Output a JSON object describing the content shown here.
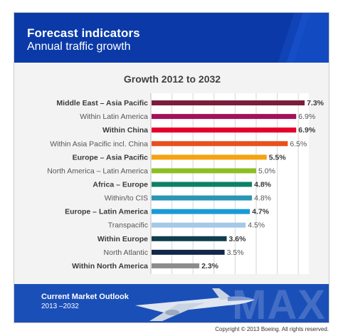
{
  "header": {
    "title": "Forecast indicators",
    "subtitle": "Annual traffic growth"
  },
  "chart_data": {
    "type": "bar",
    "orientation": "horizontal",
    "title": "Growth 2012 to 2032",
    "xlim": [
      0,
      7.5
    ],
    "grid": true,
    "categories": [
      "Middle East – Asia Pacific",
      "Within Latin America",
      "Within China",
      "Within Asia Pacific incl. China",
      "Europe – Asia Pacific",
      "North America – Latin America",
      "Africa – Europe",
      "Within/to CIS",
      "Europe – Latin America",
      "Transpacific",
      "Within Europe",
      "North Atlantic",
      "Within North America"
    ],
    "values": [
      7.3,
      6.9,
      6.9,
      6.5,
      5.5,
      5.0,
      4.8,
      4.8,
      4.7,
      4.5,
      3.6,
      3.5,
      2.3
    ],
    "value_labels": [
      "7.3%",
      "6.9%",
      "6.9%",
      "6.5%",
      "5.5%",
      "5.0%",
      "4.8%",
      "4.8%",
      "4.7%",
      "4.5%",
      "3.6%",
      "3.5%",
      "2.3%"
    ],
    "bold": [
      true,
      false,
      true,
      false,
      true,
      false,
      true,
      false,
      true,
      false,
      true,
      false,
      true
    ],
    "colors": [
      "#7a1d3a",
      "#a4105a",
      "#e4002b",
      "#e8501d",
      "#f5a312",
      "#8ebe23",
      "#0e8066",
      "#2a95b4",
      "#1a9ad6",
      "#a5c8e8",
      "#0f3f4e",
      "#12284a",
      "#8c8c8c"
    ]
  },
  "footer": {
    "line1": "Current Market Outlook",
    "line2": "2013 –2032",
    "watermark": "MAX"
  },
  "copyright": "Copyright © 2013 Boeing. All rights reserved."
}
